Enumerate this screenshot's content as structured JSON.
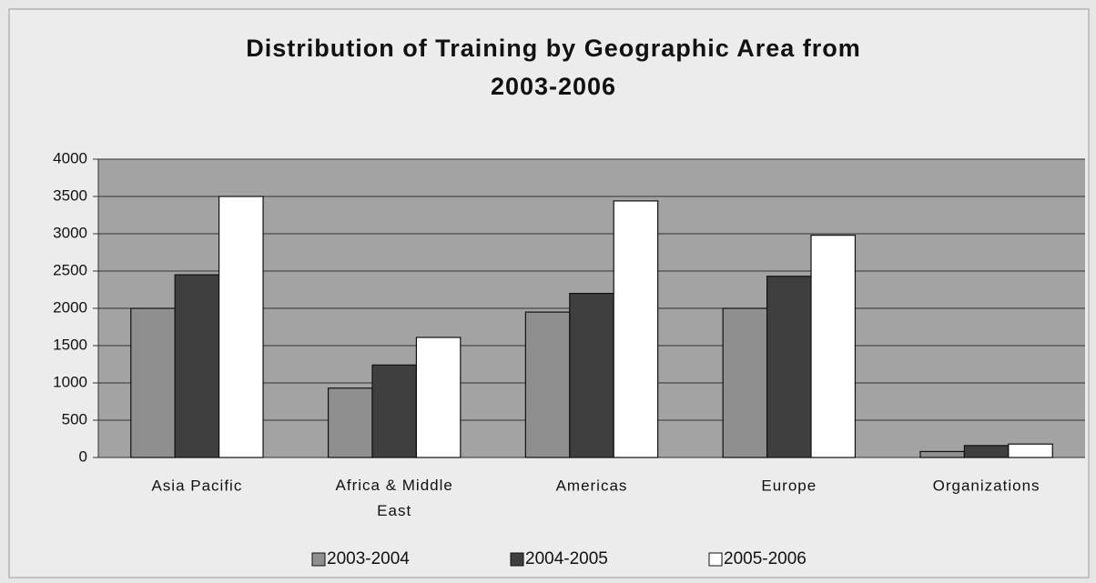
{
  "chart_data": {
    "type": "bar",
    "title": "Distribution of Training by Geographic Area from 2003-2006",
    "categories": [
      "Asia Pacific",
      "Africa & Middle East",
      "Americas",
      "Europe",
      "Organizations"
    ],
    "series": [
      {
        "name": "2003-2004",
        "color": "#8f8f8f",
        "values": [
          2000,
          930,
          1950,
          2000,
          80
        ]
      },
      {
        "name": "2004-2005",
        "color": "#3f3f3f",
        "values": [
          2450,
          1240,
          2200,
          2430,
          160
        ]
      },
      {
        "name": "2005-2006",
        "color": "#ffffff",
        "values": [
          3500,
          1610,
          3440,
          2980,
          180
        ]
      }
    ],
    "ylim": [
      0,
      4000
    ],
    "yticks": [
      0,
      500,
      1000,
      1500,
      2000,
      2500,
      3000,
      3500,
      4000
    ],
    "grid": true,
    "legend": "bottom"
  }
}
